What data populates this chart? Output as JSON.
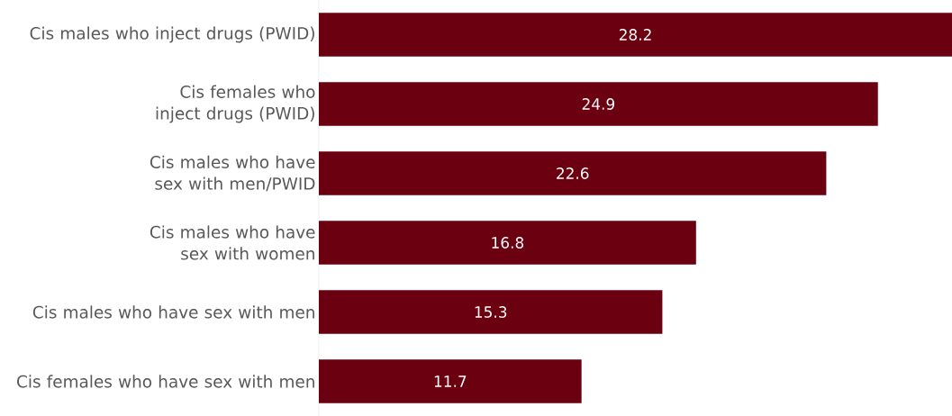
{
  "chart_data": {
    "type": "bar",
    "orientation": "horizontal",
    "categories": [
      "Cis males who inject drugs (PWID)",
      "Cis females who inject drugs (PWID)",
      "Cis males who have sex with men/PWID",
      "Cis males who have sex with women",
      "Cis males who have sex with men",
      "Cis females who have sex with men"
    ],
    "values": [
      28.2,
      24.9,
      22.6,
      16.8,
      15.3,
      11.7
    ],
    "color": "#6b0010",
    "data_labels": true
  }
}
